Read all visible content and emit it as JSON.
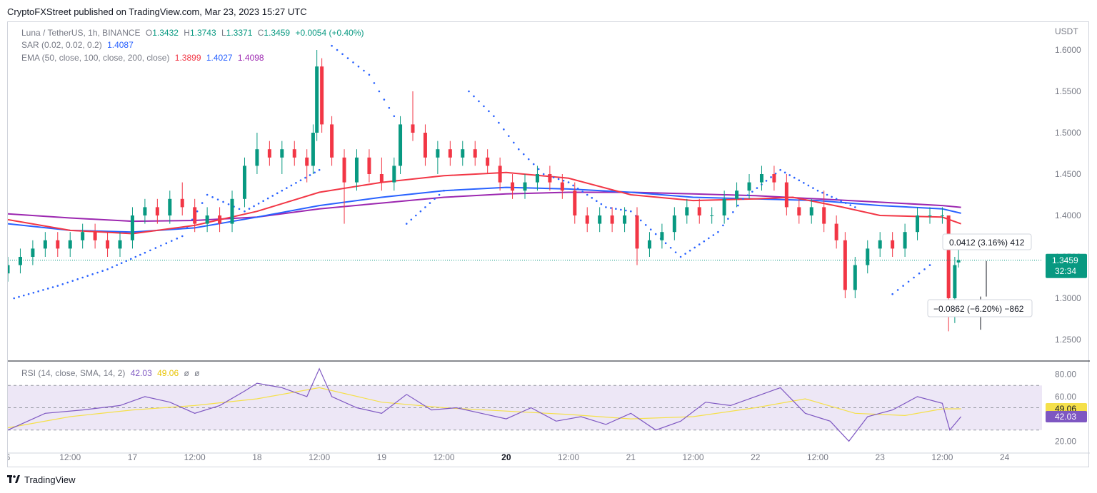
{
  "header": {
    "publisher_line": "CryptoFXStreet published on TradingView.com, Mar 23, 2023 15:27 UTC"
  },
  "footer": {
    "brand": "TradingView",
    "logo_icon": "tradingview-logo-icon"
  },
  "colors": {
    "up": "#089981",
    "down": "#f23645",
    "ema50": "#f23645",
    "ema100": "#2962ff",
    "ema200": "#9c27b0",
    "sar": "#2962ff",
    "rsi": "#7e57c2",
    "rsi_sma": "#f5e04a",
    "rsi_band": "#ede7f6",
    "grid_text": "#787b86",
    "border": "#d1d4dc"
  },
  "legend": {
    "symbol": "Luna / TetherUS, 1h, BINANCE",
    "o_label": "O",
    "o": "1.3432",
    "h_label": "H",
    "h": "1.3743",
    "l_label": "L",
    "l": "1.3371",
    "c_label": "C",
    "c": "1.3459",
    "change": "+0.0054 (+0.40%)",
    "sar_label": "SAR (0.02, 0.02, 0.2)",
    "sar_value": "1.4087",
    "ema_label": "EMA (50, close, 100, close, 200, close)",
    "ema50": "1.3899",
    "ema100": "1.4027",
    "ema200": "1.4098",
    "rsi_label": "RSI (14, close, SMA, 14, 2)",
    "rsi_value": "42.03",
    "rsi_sma_value": "49.06",
    "rsi_extra1": "ø",
    "rsi_extra2": "ø"
  },
  "price_axis": {
    "unit": "USDT",
    "ticks": [
      "1.6000",
      "1.5500",
      "1.5000",
      "1.4500",
      "1.4000",
      "1.3500",
      "1.3000",
      "1.2500"
    ],
    "current_price": "1.3459",
    "countdown": "32:34"
  },
  "rsi_axis": {
    "ticks": [
      "80.00",
      "60.00",
      "20.00"
    ],
    "rsi_badge": "42.03",
    "sma_badge": "49.06"
  },
  "time_axis": {
    "labels": [
      "6",
      "12:00",
      "17",
      "12:00",
      "18",
      "12:00",
      "19",
      "12:00",
      "20",
      "12:00",
      "21",
      "12:00",
      "22",
      "12:00",
      "23",
      "12:00",
      "24"
    ]
  },
  "measure": {
    "up_text": "0.0412 (3.16%) 412",
    "down_text": "−0.0862 (−6.20%) −862"
  },
  "chart_data": {
    "type": "candlestick",
    "symbol": "Luna / TetherUS",
    "interval": "1h",
    "ylim": [
      1.225,
      1.625
    ],
    "rsi_ylim": [
      10,
      90
    ],
    "rsi_band": [
      30,
      70
    ],
    "x_range_days": [
      16,
      24.3
    ],
    "candles": [
      {
        "t": 16.0,
        "o": 1.33,
        "h": 1.35,
        "l": 1.32,
        "c": 1.34
      },
      {
        "t": 16.1,
        "o": 1.34,
        "h": 1.36,
        "l": 1.33,
        "c": 1.35
      },
      {
        "t": 16.2,
        "o": 1.35,
        "h": 1.37,
        "l": 1.34,
        "c": 1.36
      },
      {
        "t": 16.3,
        "o": 1.36,
        "h": 1.38,
        "l": 1.35,
        "c": 1.37
      },
      {
        "t": 16.4,
        "o": 1.37,
        "h": 1.38,
        "l": 1.35,
        "c": 1.36
      },
      {
        "t": 16.5,
        "o": 1.36,
        "h": 1.38,
        "l": 1.35,
        "c": 1.37
      },
      {
        "t": 16.6,
        "o": 1.37,
        "h": 1.39,
        "l": 1.36,
        "c": 1.38
      },
      {
        "t": 16.7,
        "o": 1.38,
        "h": 1.39,
        "l": 1.36,
        "c": 1.37
      },
      {
        "t": 16.8,
        "o": 1.37,
        "h": 1.38,
        "l": 1.35,
        "c": 1.36
      },
      {
        "t": 16.9,
        "o": 1.36,
        "h": 1.38,
        "l": 1.35,
        "c": 1.37
      },
      {
        "t": 17.0,
        "o": 1.37,
        "h": 1.41,
        "l": 1.36,
        "c": 1.4
      },
      {
        "t": 17.1,
        "o": 1.4,
        "h": 1.42,
        "l": 1.39,
        "c": 1.41
      },
      {
        "t": 17.2,
        "o": 1.41,
        "h": 1.42,
        "l": 1.39,
        "c": 1.4
      },
      {
        "t": 17.3,
        "o": 1.4,
        "h": 1.43,
        "l": 1.39,
        "c": 1.42
      },
      {
        "t": 17.4,
        "o": 1.42,
        "h": 1.44,
        "l": 1.4,
        "c": 1.41
      },
      {
        "t": 17.5,
        "o": 1.41,
        "h": 1.42,
        "l": 1.38,
        "c": 1.39
      },
      {
        "t": 17.6,
        "o": 1.39,
        "h": 1.41,
        "l": 1.38,
        "c": 1.4
      },
      {
        "t": 17.7,
        "o": 1.4,
        "h": 1.41,
        "l": 1.38,
        "c": 1.39
      },
      {
        "t": 17.8,
        "o": 1.39,
        "h": 1.43,
        "l": 1.38,
        "c": 1.42
      },
      {
        "t": 17.9,
        "o": 1.42,
        "h": 1.47,
        "l": 1.41,
        "c": 1.46
      },
      {
        "t": 18.0,
        "o": 1.46,
        "h": 1.5,
        "l": 1.45,
        "c": 1.48
      },
      {
        "t": 18.1,
        "o": 1.48,
        "h": 1.49,
        "l": 1.46,
        "c": 1.47
      },
      {
        "t": 18.2,
        "o": 1.47,
        "h": 1.49,
        "l": 1.45,
        "c": 1.48
      },
      {
        "t": 18.3,
        "o": 1.48,
        "h": 1.49,
        "l": 1.46,
        "c": 1.47
      },
      {
        "t": 18.4,
        "o": 1.47,
        "h": 1.48,
        "l": 1.44,
        "c": 1.46
      },
      {
        "t": 18.45,
        "o": 1.46,
        "h": 1.51,
        "l": 1.45,
        "c": 1.5
      },
      {
        "t": 18.48,
        "o": 1.5,
        "h": 1.6,
        "l": 1.49,
        "c": 1.58
      },
      {
        "t": 18.52,
        "o": 1.58,
        "h": 1.59,
        "l": 1.5,
        "c": 1.51
      },
      {
        "t": 18.6,
        "o": 1.51,
        "h": 1.52,
        "l": 1.46,
        "c": 1.47
      },
      {
        "t": 18.7,
        "o": 1.47,
        "h": 1.48,
        "l": 1.39,
        "c": 1.44
      },
      {
        "t": 18.8,
        "o": 1.44,
        "h": 1.48,
        "l": 1.43,
        "c": 1.47
      },
      {
        "t": 18.9,
        "o": 1.47,
        "h": 1.48,
        "l": 1.44,
        "c": 1.45
      },
      {
        "t": 19.0,
        "o": 1.45,
        "h": 1.47,
        "l": 1.43,
        "c": 1.44
      },
      {
        "t": 19.1,
        "o": 1.44,
        "h": 1.47,
        "l": 1.43,
        "c": 1.46
      },
      {
        "t": 19.15,
        "o": 1.46,
        "h": 1.52,
        "l": 1.45,
        "c": 1.51
      },
      {
        "t": 19.25,
        "o": 1.51,
        "h": 1.55,
        "l": 1.49,
        "c": 1.5
      },
      {
        "t": 19.35,
        "o": 1.5,
        "h": 1.51,
        "l": 1.46,
        "c": 1.47
      },
      {
        "t": 19.45,
        "o": 1.47,
        "h": 1.49,
        "l": 1.45,
        "c": 1.48
      },
      {
        "t": 19.55,
        "o": 1.48,
        "h": 1.49,
        "l": 1.46,
        "c": 1.47
      },
      {
        "t": 19.65,
        "o": 1.47,
        "h": 1.49,
        "l": 1.46,
        "c": 1.48
      },
      {
        "t": 19.75,
        "o": 1.48,
        "h": 1.49,
        "l": 1.46,
        "c": 1.47
      },
      {
        "t": 19.85,
        "o": 1.47,
        "h": 1.48,
        "l": 1.45,
        "c": 1.46
      },
      {
        "t": 19.95,
        "o": 1.46,
        "h": 1.47,
        "l": 1.43,
        "c": 1.44
      },
      {
        "t": 20.05,
        "o": 1.44,
        "h": 1.45,
        "l": 1.42,
        "c": 1.43
      },
      {
        "t": 20.15,
        "o": 1.43,
        "h": 1.45,
        "l": 1.42,
        "c": 1.44
      },
      {
        "t": 20.25,
        "o": 1.44,
        "h": 1.46,
        "l": 1.43,
        "c": 1.45
      },
      {
        "t": 20.35,
        "o": 1.45,
        "h": 1.46,
        "l": 1.43,
        "c": 1.44
      },
      {
        "t": 20.45,
        "o": 1.44,
        "h": 1.45,
        "l": 1.42,
        "c": 1.43
      },
      {
        "t": 20.55,
        "o": 1.43,
        "h": 1.44,
        "l": 1.39,
        "c": 1.4
      },
      {
        "t": 20.65,
        "o": 1.4,
        "h": 1.41,
        "l": 1.38,
        "c": 1.39
      },
      {
        "t": 20.75,
        "o": 1.39,
        "h": 1.41,
        "l": 1.38,
        "c": 1.4
      },
      {
        "t": 20.85,
        "o": 1.4,
        "h": 1.41,
        "l": 1.38,
        "c": 1.39
      },
      {
        "t": 20.95,
        "o": 1.39,
        "h": 1.41,
        "l": 1.38,
        "c": 1.4
      },
      {
        "t": 21.05,
        "o": 1.4,
        "h": 1.41,
        "l": 1.34,
        "c": 1.36
      },
      {
        "t": 21.15,
        "o": 1.36,
        "h": 1.38,
        "l": 1.35,
        "c": 1.37
      },
      {
        "t": 21.25,
        "o": 1.37,
        "h": 1.39,
        "l": 1.36,
        "c": 1.38
      },
      {
        "t": 21.35,
        "o": 1.38,
        "h": 1.41,
        "l": 1.37,
        "c": 1.4
      },
      {
        "t": 21.45,
        "o": 1.4,
        "h": 1.42,
        "l": 1.39,
        "c": 1.41
      },
      {
        "t": 21.55,
        "o": 1.41,
        "h": 1.42,
        "l": 1.39,
        "c": 1.4
      },
      {
        "t": 21.65,
        "o": 1.4,
        "h": 1.41,
        "l": 1.39,
        "c": 1.4
      },
      {
        "t": 21.75,
        "o": 1.4,
        "h": 1.43,
        "l": 1.39,
        "c": 1.42
      },
      {
        "t": 21.85,
        "o": 1.42,
        "h": 1.44,
        "l": 1.41,
        "c": 1.43
      },
      {
        "t": 21.95,
        "o": 1.43,
        "h": 1.45,
        "l": 1.42,
        "c": 1.44
      },
      {
        "t": 22.05,
        "o": 1.44,
        "h": 1.46,
        "l": 1.43,
        "c": 1.45
      },
      {
        "t": 22.15,
        "o": 1.45,
        "h": 1.46,
        "l": 1.43,
        "c": 1.44
      },
      {
        "t": 22.25,
        "o": 1.44,
        "h": 1.45,
        "l": 1.4,
        "c": 1.41
      },
      {
        "t": 22.35,
        "o": 1.41,
        "h": 1.42,
        "l": 1.39,
        "c": 1.4
      },
      {
        "t": 22.45,
        "o": 1.4,
        "h": 1.42,
        "l": 1.39,
        "c": 1.41
      },
      {
        "t": 22.55,
        "o": 1.41,
        "h": 1.43,
        "l": 1.38,
        "c": 1.39
      },
      {
        "t": 22.65,
        "o": 1.39,
        "h": 1.4,
        "l": 1.36,
        "c": 1.37
      },
      {
        "t": 22.72,
        "o": 1.37,
        "h": 1.38,
        "l": 1.3,
        "c": 1.31
      },
      {
        "t": 22.8,
        "o": 1.31,
        "h": 1.35,
        "l": 1.3,
        "c": 1.34
      },
      {
        "t": 22.9,
        "o": 1.34,
        "h": 1.37,
        "l": 1.33,
        "c": 1.36
      },
      {
        "t": 23.0,
        "o": 1.36,
        "h": 1.38,
        "l": 1.35,
        "c": 1.37
      },
      {
        "t": 23.1,
        "o": 1.37,
        "h": 1.38,
        "l": 1.35,
        "c": 1.36
      },
      {
        "t": 23.2,
        "o": 1.36,
        "h": 1.39,
        "l": 1.35,
        "c": 1.38
      },
      {
        "t": 23.3,
        "o": 1.38,
        "h": 1.41,
        "l": 1.37,
        "c": 1.4
      },
      {
        "t": 23.4,
        "o": 1.4,
        "h": 1.41,
        "l": 1.39,
        "c": 1.4
      },
      {
        "t": 23.5,
        "o": 1.4,
        "h": 1.41,
        "l": 1.39,
        "c": 1.4
      },
      {
        "t": 23.55,
        "o": 1.4,
        "h": 1.4,
        "l": 1.26,
        "c": 1.3
      },
      {
        "t": 23.6,
        "o": 1.3,
        "h": 1.35,
        "l": 1.27,
        "c": 1.34
      },
      {
        "t": 23.63,
        "o": 1.3432,
        "h": 1.3743,
        "l": 1.3371,
        "c": 1.3459
      }
    ],
    "ema50": [
      [
        16.0,
        1.395
      ],
      [
        16.5,
        1.382
      ],
      [
        17.0,
        1.378
      ],
      [
        17.5,
        1.388
      ],
      [
        18.0,
        1.405
      ],
      [
        18.5,
        1.428
      ],
      [
        19.0,
        1.44
      ],
      [
        19.5,
        1.448
      ],
      [
        20.0,
        1.452
      ],
      [
        20.5,
        1.445
      ],
      [
        21.0,
        1.425
      ],
      [
        21.5,
        1.418
      ],
      [
        22.0,
        1.42
      ],
      [
        22.3,
        1.422
      ],
      [
        22.7,
        1.41
      ],
      [
        23.0,
        1.4
      ],
      [
        23.5,
        1.398
      ],
      [
        23.65,
        1.3899
      ]
    ],
    "ema100": [
      [
        16.0,
        1.39
      ],
      [
        16.5,
        1.382
      ],
      [
        17.0,
        1.38
      ],
      [
        17.5,
        1.385
      ],
      [
        18.0,
        1.398
      ],
      [
        18.5,
        1.412
      ],
      [
        19.0,
        1.422
      ],
      [
        19.5,
        1.43
      ],
      [
        20.0,
        1.434
      ],
      [
        20.5,
        1.432
      ],
      [
        21.0,
        1.428
      ],
      [
        21.5,
        1.422
      ],
      [
        22.0,
        1.42
      ],
      [
        22.5,
        1.418
      ],
      [
        23.0,
        1.412
      ],
      [
        23.5,
        1.408
      ],
      [
        23.65,
        1.4027
      ]
    ],
    "ema200": [
      [
        16.0,
        1.402
      ],
      [
        16.5,
        1.397
      ],
      [
        17.0,
        1.393
      ],
      [
        17.5,
        1.394
      ],
      [
        18.0,
        1.398
      ],
      [
        18.5,
        1.408
      ],
      [
        19.0,
        1.415
      ],
      [
        19.5,
        1.422
      ],
      [
        20.0,
        1.426
      ],
      [
        20.5,
        1.428
      ],
      [
        21.0,
        1.428
      ],
      [
        21.5,
        1.426
      ],
      [
        22.0,
        1.424
      ],
      [
        22.5,
        1.42
      ],
      [
        23.0,
        1.416
      ],
      [
        23.5,
        1.412
      ],
      [
        23.65,
        1.4098
      ]
    ],
    "sar": [
      [
        16.05,
        1.3
      ],
      [
        16.4,
        1.315
      ],
      [
        16.8,
        1.335
      ],
      [
        17.1,
        1.355
      ],
      [
        17.4,
        1.375
      ],
      [
        17.6,
        1.425
      ],
      [
        17.9,
        1.405
      ],
      [
        18.2,
        1.43
      ],
      [
        18.5,
        1.455
      ],
      [
        18.6,
        1.605
      ],
      [
        18.9,
        1.57
      ],
      [
        19.1,
        1.52
      ],
      [
        19.2,
        1.39
      ],
      [
        19.5,
        1.43
      ],
      [
        19.7,
        1.55
      ],
      [
        19.9,
        1.52
      ],
      [
        20.1,
        1.48
      ],
      [
        20.3,
        1.45
      ],
      [
        20.5,
        1.44
      ],
      [
        20.8,
        1.41
      ],
      [
        21.0,
        1.405
      ],
      [
        21.4,
        1.35
      ],
      [
        21.7,
        1.38
      ],
      [
        21.9,
        1.42
      ],
      [
        22.2,
        1.455
      ],
      [
        22.5,
        1.43
      ],
      [
        22.8,
        1.41
      ],
      [
        23.1,
        1.305
      ],
      [
        23.4,
        1.34
      ],
      [
        23.6,
        1.415
      ]
    ],
    "rsi": [
      [
        16.0,
        30
      ],
      [
        16.3,
        45
      ],
      [
        16.6,
        48
      ],
      [
        16.9,
        52
      ],
      [
        17.1,
        60
      ],
      [
        17.3,
        55
      ],
      [
        17.5,
        45
      ],
      [
        17.7,
        52
      ],
      [
        17.9,
        65
      ],
      [
        18.0,
        72
      ],
      [
        18.2,
        68
      ],
      [
        18.4,
        60
      ],
      [
        18.5,
        85
      ],
      [
        18.6,
        60
      ],
      [
        18.8,
        50
      ],
      [
        19.0,
        45
      ],
      [
        19.2,
        62
      ],
      [
        19.4,
        48
      ],
      [
        19.6,
        50
      ],
      [
        19.8,
        45
      ],
      [
        20.0,
        40
      ],
      [
        20.2,
        50
      ],
      [
        20.4,
        38
      ],
      [
        20.6,
        42
      ],
      [
        20.8,
        35
      ],
      [
        21.0,
        45
      ],
      [
        21.2,
        30
      ],
      [
        21.4,
        38
      ],
      [
        21.6,
        55
      ],
      [
        21.8,
        52
      ],
      [
        22.0,
        60
      ],
      [
        22.2,
        68
      ],
      [
        22.4,
        45
      ],
      [
        22.6,
        38
      ],
      [
        22.75,
        20
      ],
      [
        22.9,
        42
      ],
      [
        23.1,
        48
      ],
      [
        23.3,
        60
      ],
      [
        23.5,
        54
      ],
      [
        23.56,
        30
      ],
      [
        23.65,
        42.03
      ]
    ],
    "rsi_sma": [
      [
        16.0,
        32
      ],
      [
        16.5,
        42
      ],
      [
        17.0,
        48
      ],
      [
        17.5,
        52
      ],
      [
        18.0,
        58
      ],
      [
        18.5,
        68
      ],
      [
        19.0,
        55
      ],
      [
        19.5,
        50
      ],
      [
        20.0,
        47
      ],
      [
        20.5,
        44
      ],
      [
        21.0,
        40
      ],
      [
        21.5,
        42
      ],
      [
        22.0,
        50
      ],
      [
        22.4,
        58
      ],
      [
        22.8,
        45
      ],
      [
        23.2,
        43
      ],
      [
        23.5,
        49
      ],
      [
        23.65,
        49.06
      ]
    ]
  }
}
